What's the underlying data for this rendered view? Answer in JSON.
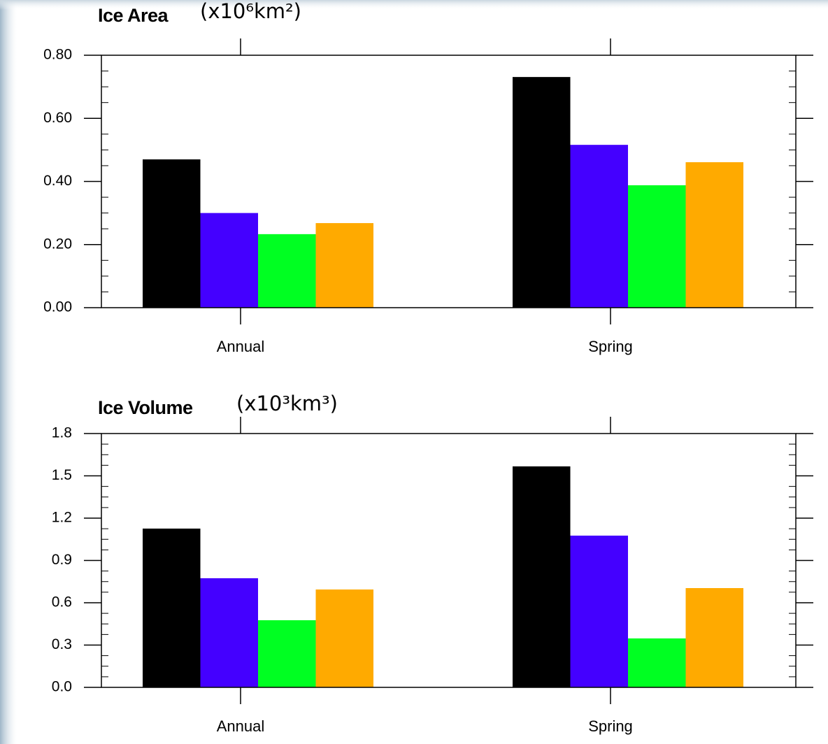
{
  "chart_data": [
    {
      "type": "bar",
      "title": "Ice Area",
      "unit": "(x10⁶km²)",
      "categories": [
        "Annual",
        "Spring"
      ],
      "series": [
        {
          "color": "#000000",
          "values": [
            0.47,
            0.731
          ]
        },
        {
          "color": "#4400ff",
          "values": [
            0.3,
            0.516
          ]
        },
        {
          "color": "#00ff22",
          "values": [
            0.233,
            0.388
          ]
        },
        {
          "color": "#ffaa00",
          "values": [
            0.268,
            0.461
          ]
        }
      ],
      "ylim": [
        0,
        0.8
      ],
      "yticks": [
        {
          "value": 0,
          "label": "0.00"
        },
        {
          "value": 0.2,
          "label": "0.20"
        },
        {
          "value": 0.4,
          "label": "0.40"
        },
        {
          "value": 0.6,
          "label": "0.60"
        },
        {
          "value": 0.8,
          "label": "0.80"
        }
      ]
    },
    {
      "type": "bar",
      "title": "Ice Volume",
      "unit": "(x10³km³)",
      "categories": [
        "Annual",
        "Spring"
      ],
      "series": [
        {
          "color": "#000000",
          "values": [
            1.126,
            1.567
          ]
        },
        {
          "color": "#4400ff",
          "values": [
            0.774,
            1.076
          ]
        },
        {
          "color": "#00ff22",
          "values": [
            0.476,
            0.347
          ]
        },
        {
          "color": "#ffaa00",
          "values": [
            0.694,
            0.704
          ]
        }
      ],
      "ylim": [
        0,
        1.8
      ],
      "yticks": [
        {
          "value": 0,
          "label": "0.0"
        },
        0.3,
        0.6,
        0.9,
        1.2,
        1.5,
        1.8
      ]
    }
  ]
}
